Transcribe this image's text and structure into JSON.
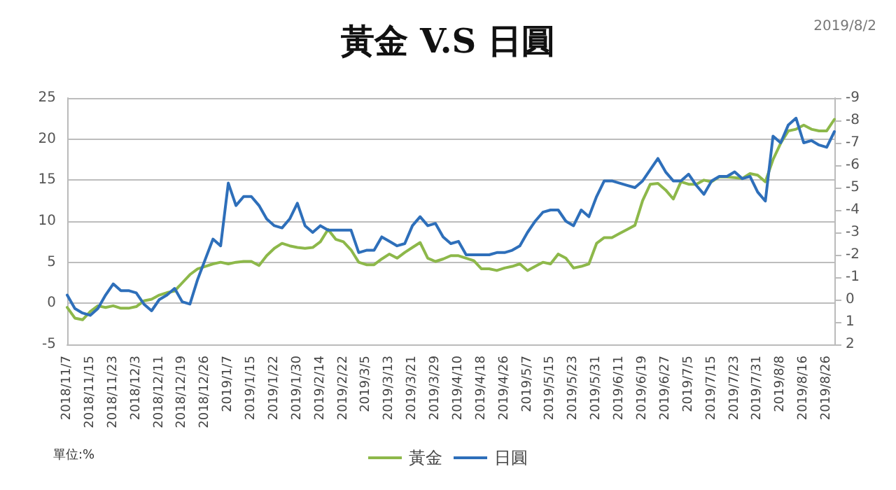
{
  "chart_data": {
    "type": "line",
    "title": "黃金 V.S 日圓",
    "annotations": [
      "單位:%",
      "2019/8/2"
    ],
    "categories": [
      "2018/11/7",
      null,
      null,
      "2018/11/15",
      null,
      null,
      "2018/11/23",
      null,
      null,
      "2018/12/3",
      null,
      null,
      "2018/12/11",
      null,
      null,
      "2018/12/19",
      null,
      null,
      "2018/12/26",
      null,
      null,
      "2019/1/7",
      null,
      null,
      "2019/1/15",
      null,
      null,
      "2019/1/22",
      null,
      null,
      "2019/1/30",
      null,
      null,
      "2019/2/14",
      null,
      null,
      "2019/2/22",
      null,
      null,
      "2019/3/5",
      null,
      null,
      "2019/3/13",
      null,
      null,
      "2019/3/21",
      null,
      null,
      "2019/3/29",
      null,
      null,
      "2019/4/10",
      null,
      null,
      "2019/4/18",
      null,
      null,
      "2019/4/26",
      null,
      null,
      "2019/5/7",
      null,
      null,
      "2019/5/15",
      null,
      null,
      "2019/5/23",
      null,
      null,
      "2019/5/31",
      null,
      null,
      "2019/6/11",
      null,
      null,
      "2019/6/19",
      null,
      null,
      "2019/6/27",
      null,
      null,
      "2019/7/5",
      null,
      null,
      "2019/7/15",
      null,
      null,
      "2019/7/23",
      null,
      null,
      "2019/7/31",
      null,
      null,
      "2019/8/8",
      null,
      null,
      "2019/8/16",
      null,
      null,
      "2019/8/26",
      null
    ],
    "series": [
      {
        "name": "黃金",
        "color": "#8db84a",
        "values": [
          -0.5,
          -1.8,
          -2,
          -1,
          -0.3,
          -0.5,
          -0.3,
          -0.6,
          -0.6,
          -0.4,
          0.3,
          0.5,
          1,
          1.3,
          1.5,
          2.5,
          3.5,
          4.2,
          4.5,
          4.8,
          5,
          4.8,
          5,
          5.1,
          5.1,
          4.6,
          5.8,
          6.7,
          7.3,
          7,
          6.8,
          6.7,
          6.8,
          7.5,
          9,
          7.8,
          7.5,
          6.5,
          5,
          4.7,
          4.7,
          5.4,
          6,
          5.5,
          6.2,
          6.8,
          7.4,
          5.5,
          5.1,
          5.4,
          5.8,
          5.8,
          5.5,
          5.2,
          4.2,
          4.2,
          4,
          4.3,
          4.5,
          4.8,
          4,
          4.5,
          5,
          4.8,
          6,
          5.5,
          4.3,
          4.5,
          4.8,
          7.3,
          8,
          8,
          8.5,
          9,
          9.5,
          12.5,
          14.5,
          14.6,
          13.8,
          12.7,
          14.8,
          14.5,
          14.5,
          15,
          14.8,
          15.4,
          15.4,
          15.3,
          15.2,
          15.8,
          15.6,
          14.8,
          17.5,
          19.5,
          21,
          21.2,
          21.7,
          21.2,
          21,
          21,
          22.4
        ]
      },
      {
        "name": "日圓",
        "color": "#2e6fba",
        "axis": "y2",
        "values": [
          -0.2,
          0.4,
          0.6,
          0.7,
          0.4,
          -0.2,
          -0.7,
          -0.4,
          -0.4,
          -0.3,
          0.2,
          0.5,
          0,
          -0.2,
          -0.5,
          0.1,
          0.2,
          -0.9,
          -1.8,
          -2.7,
          -2.4,
          -5.2,
          -4.2,
          -4.6,
          -4.6,
          -4.2,
          -3.6,
          -3.3,
          -3.2,
          -3.6,
          -4.3,
          -3.3,
          -3.0,
          -3.3,
          -3.1,
          -3.1,
          -3.1,
          -3.1,
          -2.1,
          -2.2,
          -2.2,
          -2.8,
          -2.6,
          -2.4,
          -2.5,
          -3.3,
          -3.7,
          -3.3,
          -3.4,
          -2.8,
          -2.5,
          -2.6,
          -2.0,
          -2.0,
          -2.0,
          -2.0,
          -2.1,
          -2.1,
          -2.2,
          -2.4,
          -3.0,
          -3.5,
          -3.9,
          -4.0,
          -4.0,
          -3.5,
          -3.3,
          -4.0,
          -3.7,
          -4.6,
          -5.3,
          -5.3,
          -5.2,
          -5.1,
          -5.0,
          -5.3,
          -5.8,
          -6.3,
          -5.7,
          -5.3,
          -5.3,
          -5.6,
          -5.1,
          -4.7,
          -5.3,
          -5.5,
          -5.5,
          -5.7,
          -5.4,
          -5.5,
          -4.8,
          -4.4,
          -7.3,
          -7.0,
          -7.8,
          -8.1,
          -7.0,
          -7.1,
          -6.9,
          -6.8,
          -7.5
        ]
      }
    ],
    "ylim": [
      -5,
      25
    ],
    "yticks": [
      -5,
      0,
      5,
      10,
      15,
      20,
      25
    ],
    "y2lim": [
      2,
      -9
    ],
    "y2ticks": [
      -9,
      -8,
      -7,
      -6,
      -5,
      -4,
      -3,
      -2,
      -1,
      0,
      1,
      2
    ],
    "grid": "y",
    "legend": "bottom",
    "marker": "none",
    "line_style": "solid"
  }
}
